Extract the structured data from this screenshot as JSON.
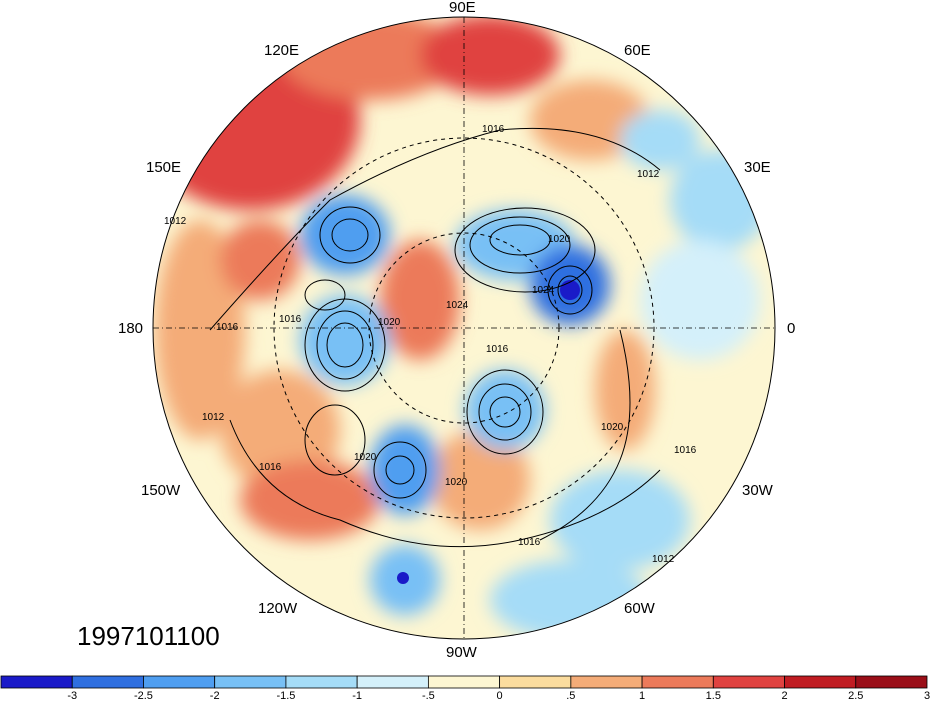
{
  "lon_labels": {
    "n90e": "90E",
    "n120e": "120E",
    "n60e": "60E",
    "n150e": "150E",
    "n30e": "30E",
    "n180": "180",
    "n0": "0",
    "n150w": "150W",
    "n30w": "30W",
    "n120w": "120W",
    "n60w": "60W",
    "n90w": "90W"
  },
  "timestamp": "1997101100",
  "contour_labels": [
    "1016",
    "1012",
    "1012",
    "1016",
    "1016",
    "1020",
    "1024",
    "1020",
    "1024",
    "1012",
    "1016",
    "1020",
    "1016",
    "1020",
    "1020",
    "1016",
    "1012",
    "1016"
  ],
  "colorbar": {
    "colors": [
      "#1a1ac8",
      "#2f6fe0",
      "#4f9ef0",
      "#78c0f5",
      "#a5dcf7",
      "#d4f0fa",
      "#fdf6d2",
      "#fbdc9e",
      "#f4ac78",
      "#ec7a5a",
      "#e04240",
      "#c01c22",
      "#9a0e18"
    ],
    "ticks": [
      "-3",
      "-2.5",
      "-2",
      "-1.5",
      "-1",
      "-.5",
      "0",
      ".5",
      "1",
      "1.5",
      "2",
      "2.5",
      "3"
    ]
  }
}
